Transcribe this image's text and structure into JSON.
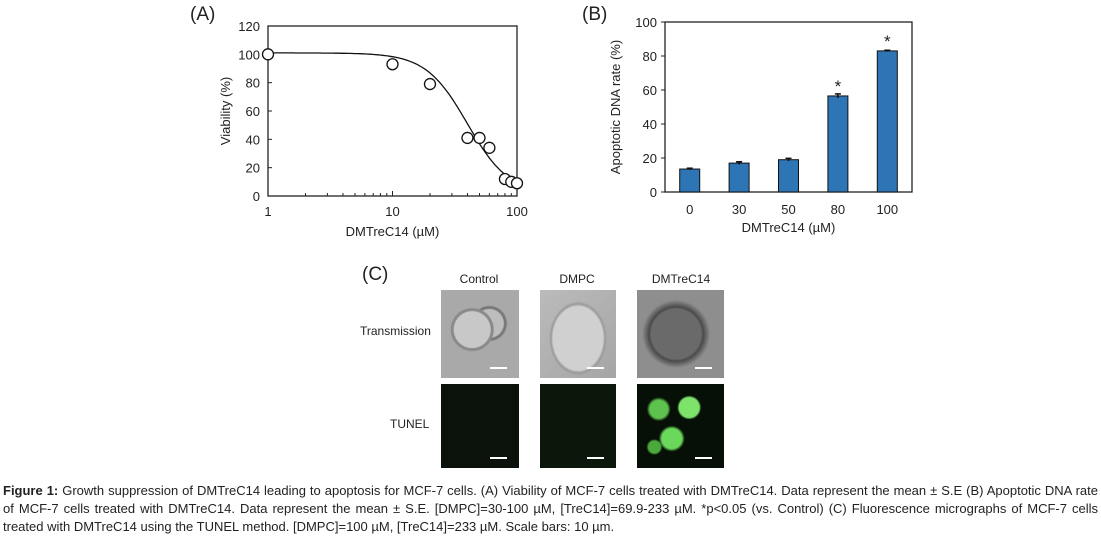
{
  "panels": {
    "a": "(A)",
    "b": "(B)",
    "c": "(C)"
  },
  "chart_data": [
    {
      "type": "scatter",
      "xlabel": "DMTreC14 (µM)",
      "ylabel": "Viability (%)",
      "xscale": "log",
      "xlim": [
        1,
        100
      ],
      "ylim": [
        0,
        120
      ],
      "xticks": [
        "1",
        "10",
        "100"
      ],
      "yticks": [
        "0",
        "20",
        "40",
        "60",
        "80",
        "100",
        "120"
      ],
      "x": [
        1,
        10,
        20,
        40,
        50,
        60,
        80,
        90,
        100
      ],
      "y": [
        100,
        93,
        79,
        41,
        41,
        34,
        12,
        10,
        9
      ],
      "fit_curve": true,
      "marker": "open-circle",
      "error_bars": true
    },
    {
      "type": "bar",
      "xlabel": "DMTreC14 (µM)",
      "ylabel": "Apoptotic DNA rate (%)",
      "ylim": [
        0,
        100
      ],
      "categories": [
        "0",
        "30",
        "50",
        "80",
        "100"
      ],
      "values": [
        13.5,
        17,
        19,
        56.5,
        83
      ],
      "errors": [
        0.5,
        0.8,
        0.8,
        1.2,
        0.4
      ],
      "annotations": [
        "",
        "",
        "",
        "*",
        "*"
      ],
      "yticks": [
        "0",
        "20",
        "40",
        "60",
        "80",
        "100"
      ],
      "color": "#2e75b6"
    }
  ],
  "micrographs": {
    "columns": [
      "Control",
      "DMPC",
      "DMTreC14"
    ],
    "rows": [
      "Transmission",
      "TUNEL"
    ]
  },
  "caption": {
    "label": "Figure 1:",
    "text": " Growth suppression of DMTreC14 leading to apoptosis for MCF-7 cells. (A) Viability of MCF-7 cells treated with DMTreC14. Data represent the mean ± S.E (B) Apoptotic DNA rate of MCF-7 cells treated with DMTreC14. Data represent the mean ± S.E. [DMPC]=30-100 µM, [TreC14]=69.9-233 µM. *p<0.05 (vs. Control) (C) Fluorescence micrographs of MCF-7 cells treated with DMTreC14 using the TUNEL method. [DMPC]=100 µM, [TreC14]=233 µM. Scale bars: 10 µm."
  }
}
